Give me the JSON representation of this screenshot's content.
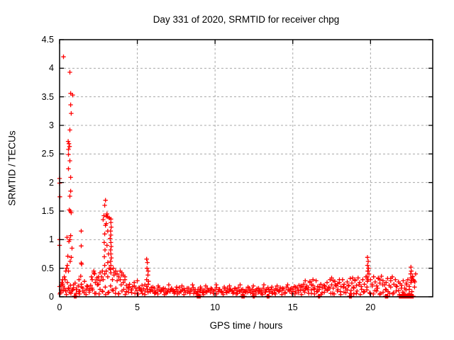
{
  "window": {
    "background": "#ffffff"
  },
  "chart_data": {
    "type": "scatter",
    "title": "Day 331 of 2020, SRMTID for receiver chpg",
    "xlabel": "GPS time / hours",
    "ylabel": "SRMTID / TECUs",
    "xlim": [
      0,
      24
    ],
    "ylim": [
      0,
      4.5
    ],
    "xticks": [
      0,
      5,
      10,
      15,
      20
    ],
    "xtick_labels": [
      "0",
      "5",
      "10",
      "15",
      "20"
    ],
    "yticks": [
      0,
      0.5,
      1,
      1.5,
      2,
      2.5,
      3,
      3.5,
      4,
      4.5
    ],
    "ytick_labels": [
      "0",
      "0.5",
      "1",
      "1.5",
      "2",
      "2.5",
      "3",
      "3.5",
      "4",
      "4.5"
    ],
    "grid": true,
    "legend": "none",
    "marker": "plus",
    "colors": {
      "marker": "#ff0000",
      "grid": "#a8a8a8",
      "axis": "#000000",
      "text": "#000000"
    },
    "series": [
      {
        "name": "SRMTID",
        "band1": {
          "x_start": 0.0,
          "x_step": 0.1,
          "y": [
            0.18,
            0.12,
            0.22,
            0.15,
            0.1,
            0.25,
            0.14,
            0.2,
            0.11,
            0.16,
            0.24,
            0.13,
            0.19,
            0.1,
            0.22,
            0.15,
            0.27,
            0.12,
            0.18,
            0.14,
            0.2,
            0.3,
            0.42,
            0.25,
            0.33,
            0.22,
            0.28,
            0.35,
            0.3,
            0.4,
            0.45,
            0.35,
            0.5,
            0.42,
            0.3,
            0.38,
            0.45,
            0.28,
            0.35,
            0.3,
            0.38,
            0.25,
            0.3,
            0.2,
            0.15,
            0.22,
            0.12,
            0.18,
            0.25,
            0.15,
            0.28,
            0.16,
            0.12,
            0.2,
            0.14,
            0.1,
            0.18,
            0.22,
            0.13,
            0.16,
            0.1,
            0.15,
            0.08,
            0.12,
            0.16,
            0.09,
            0.13,
            0.1,
            0.14,
            0.08,
            0.12,
            0.09,
            0.15,
            0.11,
            0.08,
            0.13,
            0.1,
            0.16,
            0.09,
            0.12,
            0.14,
            0.08,
            0.11,
            0.15,
            0.09,
            0.12,
            0.16,
            0.1,
            0.07,
            0.13,
            0.1,
            0.14,
            0.08,
            0.12,
            0.09,
            0.15,
            0.11,
            0.08,
            0.13,
            0.1,
            0.12,
            0.16,
            0.09,
            0.13,
            0.1,
            0.07,
            0.14,
            0.11,
            0.15,
            0.09,
            0.13,
            0.1,
            0.08,
            0.14,
            0.11,
            0.16,
            0.09,
            0.12,
            0.07,
            0.1,
            0.12,
            0.08,
            0.15,
            0.1,
            0.13,
            0.09,
            0.11,
            0.14,
            0.08,
            0.12,
            0.1,
            0.15,
            0.08,
            0.12,
            0.16,
            0.09,
            0.13,
            0.07,
            0.11,
            0.14,
            0.12,
            0.09,
            0.16,
            0.11,
            0.14,
            0.08,
            0.17,
            0.12,
            0.1,
            0.15,
            0.13,
            0.18,
            0.1,
            0.15,
            0.2,
            0.12,
            0.17,
            0.22,
            0.14,
            0.19,
            0.16,
            0.25,
            0.12,
            0.2,
            0.15,
            0.28,
            0.18,
            0.13,
            0.22,
            0.16,
            0.2,
            0.14,
            0.25,
            0.17,
            0.3,
            0.21,
            0.15,
            0.27,
            0.19,
            0.23,
            0.25,
            0.18,
            0.3,
            0.22,
            0.15,
            0.26,
            0.2,
            0.32,
            0.24,
            0.17,
            0.28,
            0.2,
            0.33,
            0.25,
            0.18,
            0.3,
            0.22,
            0.35,
            0.27,
            0.4,
            0.3,
            0.22,
            0.35,
            0.26,
            0.19,
            0.32,
            0.24,
            0.36,
            0.28,
            0.21,
            0.25,
            0.32,
            0.2,
            0.28,
            0.35,
            0.22,
            0.3,
            0.18,
            0.26,
            0.23,
            0.2,
            0.28,
            0.15,
            0.24,
            0.3,
            0.18,
            0.25,
            0.35,
            0.28,
            0.4
          ]
        },
        "band2": {
          "x_start": 0.05,
          "x_step": 0.17,
          "y": [
            0.07,
            0.19,
            0.11,
            0.15,
            0.06,
            0.21,
            0.13,
            0.09,
            0.17,
            0.07,
            0.19,
            0.11,
            0.15,
            0.06,
            0.21,
            0.13,
            0.09,
            0.17,
            0.07,
            0.19,
            0.11,
            0.15,
            0.06,
            0.21,
            0.13,
            0.09,
            0.17,
            0.07,
            0.19,
            0.11,
            0.15,
            0.06,
            0.21,
            0.13,
            0.09,
            0.17,
            0.07,
            0.19,
            0.11,
            0.15,
            0.06,
            0.21,
            0.13,
            0.09,
            0.17,
            0.07,
            0.19,
            0.11,
            0.15,
            0.06,
            0.21,
            0.13,
            0.09,
            0.17,
            0.07,
            0.19,
            0.11,
            0.15,
            0.06,
            0.21,
            0.13,
            0.09,
            0.17,
            0.07,
            0.19,
            0.11,
            0.15,
            0.06,
            0.21,
            0.13,
            0.09,
            0.17,
            0.07,
            0.19,
            0.11,
            0.15,
            0.06,
            0.21,
            0.13,
            0.09,
            0.17,
            0.07,
            0.19,
            0.11,
            0.15,
            0.06,
            0.21,
            0.13,
            0.09,
            0.17,
            0.07,
            0.19,
            0.11,
            0.15,
            0.06,
            0.21,
            0.13,
            0.09,
            0.17,
            0.07,
            0.19,
            0.11,
            0.15,
            0.06,
            0.21,
            0.13,
            0.09,
            0.17,
            0.07,
            0.19,
            0.11,
            0.15,
            0.06,
            0.21,
            0.13,
            0.09,
            0.17,
            0.07,
            0.19,
            0.11,
            0.15,
            0.06,
            0.21,
            0.13,
            0.09,
            0.17,
            0.07,
            0.19,
            0.11,
            0.15,
            0.06,
            0.21,
            0.13,
            0.09,
            0.17
          ]
        },
        "band3": {
          "x_start": 0.02,
          "x_step": 0.21,
          "y": [
            0.05,
            0.1,
            0.04,
            0.08,
            0.12,
            0.06,
            0.05,
            0.1,
            0.04,
            0.08,
            0.12,
            0.06,
            0.05,
            0.1,
            0.04,
            0.08,
            0.12,
            0.06,
            0.05,
            0.1,
            0.04,
            0.08,
            0.12,
            0.06,
            0.05,
            0.1,
            0.04,
            0.08,
            0.12,
            0.06,
            0.05,
            0.1,
            0.04,
            0.08,
            0.12,
            0.06,
            0.05,
            0.1,
            0.04,
            0.08,
            0.12,
            0.06,
            0.05,
            0.1,
            0.04,
            0.08,
            0.12,
            0.06,
            0.05,
            0.1,
            0.04,
            0.08,
            0.12,
            0.06,
            0.05,
            0.1,
            0.04,
            0.08,
            0.12,
            0.06,
            0.05,
            0.1,
            0.04,
            0.08,
            0.12,
            0.06,
            0.05,
            0.1,
            0.04,
            0.08,
            0.12,
            0.06,
            0.05,
            0.1,
            0.04,
            0.08,
            0.12,
            0.06,
            0.05,
            0.1,
            0.04,
            0.08,
            0.12,
            0.06,
            0.05,
            0.1,
            0.04,
            0.08,
            0.12,
            0.06,
            0.05,
            0.1,
            0.04,
            0.08,
            0.12,
            0.06,
            0.05,
            0.1,
            0.04,
            0.08,
            0.12,
            0.06,
            0.05,
            0.1,
            0.04,
            0.08,
            0.12,
            0.06
          ]
        },
        "features": [
          [
            0.25,
            4.2
          ],
          [
            0.66,
            3.93
          ],
          [
            0.71,
            3.56
          ],
          [
            0.84,
            3.53
          ],
          [
            0.71,
            3.36
          ],
          [
            0.75,
            3.21
          ],
          [
            0.66,
            2.92
          ],
          [
            0.55,
            2.72
          ],
          [
            0.6,
            2.68
          ],
          [
            0.64,
            2.63
          ],
          [
            0.57,
            2.58
          ],
          [
            0.57,
            2.49
          ],
          [
            0.66,
            2.38
          ],
          [
            0.57,
            2.24
          ],
          [
            0.71,
            2.09
          ],
          [
            0.71,
            1.85
          ],
          [
            0.66,
            1.76
          ],
          [
            0.62,
            1.52
          ],
          [
            0.7,
            1.5
          ],
          [
            0.75,
            1.47
          ],
          [
            0.48,
            1.04
          ],
          [
            0.71,
            1.07
          ],
          [
            0.66,
            1.0
          ],
          [
            0.6,
            0.97
          ],
          [
            0.53,
            0.71
          ],
          [
            0.75,
            0.69
          ],
          [
            0.57,
            0.45
          ],
          [
            0.5,
            0.55
          ],
          [
            0.68,
            0.62
          ],
          [
            0.8,
            0.85
          ],
          [
            0.0,
            2.07
          ],
          [
            0.0,
            1.99
          ],
          [
            0.02,
            1.75
          ],
          [
            0.0,
            1.0
          ],
          [
            0.0,
            0.9
          ],
          [
            0.3,
            0.35
          ],
          [
            0.35,
            0.3
          ],
          [
            0.4,
            0.45
          ],
          [
            0.45,
            0.5
          ],
          [
            0.2,
            0.3
          ],
          [
            0.15,
            0.25
          ],
          [
            0.1,
            0.2
          ],
          [
            1.39,
            1.15
          ],
          [
            1.39,
            0.89
          ],
          [
            1.39,
            0.59
          ],
          [
            1.42,
            0.57
          ],
          [
            1.36,
            0.36
          ],
          [
            1.25,
            0.3
          ],
          [
            2.95,
            1.69
          ],
          [
            2.9,
            1.6
          ],
          [
            2.85,
            1.42
          ],
          [
            3.0,
            1.41
          ],
          [
            3.1,
            1.4
          ],
          [
            3.2,
            1.38
          ],
          [
            2.8,
            1.35
          ],
          [
            3.3,
            1.36
          ],
          [
            2.95,
            1.25
          ],
          [
            3.05,
            1.45
          ],
          [
            3.0,
            1.28
          ],
          [
            3.3,
            1.3
          ],
          [
            3.32,
            1.22
          ],
          [
            3.28,
            1.15
          ],
          [
            3.3,
            1.08
          ],
          [
            3.25,
            1.02
          ],
          [
            3.3,
            0.95
          ],
          [
            3.32,
            0.88
          ],
          [
            3.28,
            0.82
          ],
          [
            3.3,
            0.75
          ],
          [
            3.33,
            0.68
          ],
          [
            3.28,
            0.62
          ],
          [
            3.3,
            0.55
          ],
          [
            3.27,
            0.48
          ],
          [
            2.9,
            1.1
          ],
          [
            2.87,
            0.95
          ],
          [
            2.92,
            0.82
          ],
          [
            2.88,
            0.7
          ],
          [
            2.9,
            0.55
          ],
          [
            3.1,
            1.15
          ],
          [
            3.05,
            0.9
          ],
          [
            3.15,
            0.75
          ],
          [
            3.1,
            0.6
          ],
          [
            2.75,
            0.45
          ],
          [
            3.45,
            0.5
          ],
          [
            3.5,
            0.42
          ],
          [
            2.2,
            0.45
          ],
          [
            2.25,
            0.4
          ],
          [
            2.5,
            0.35
          ],
          [
            2.6,
            0.42
          ],
          [
            3.6,
            0.45
          ],
          [
            3.7,
            0.4
          ],
          [
            3.9,
            0.45
          ],
          [
            4.0,
            0.42
          ],
          [
            4.1,
            0.38
          ],
          [
            2.05,
            0.35
          ],
          [
            2.4,
            0.3
          ],
          [
            4.2,
            0.35
          ],
          [
            5.6,
            0.66
          ],
          [
            5.65,
            0.6
          ],
          [
            5.62,
            0.5
          ],
          [
            5.7,
            0.45
          ],
          [
            5.68,
            0.38
          ],
          [
            5.6,
            0.3
          ],
          [
            5.72,
            0.27
          ],
          [
            15.8,
            0.28
          ],
          [
            16.1,
            0.27
          ],
          [
            16.3,
            0.3
          ],
          [
            17.5,
            0.33
          ],
          [
            17.6,
            0.28
          ],
          [
            18.0,
            0.3
          ],
          [
            18.85,
            0.33
          ],
          [
            19.0,
            0.3
          ],
          [
            20.5,
            0.33
          ],
          [
            20.6,
            0.3
          ],
          [
            21.3,
            0.32
          ],
          [
            19.8,
            0.69
          ],
          [
            19.85,
            0.62
          ],
          [
            19.8,
            0.55
          ],
          [
            19.87,
            0.5
          ],
          [
            19.82,
            0.45
          ],
          [
            19.9,
            0.4
          ],
          [
            19.78,
            0.35
          ],
          [
            19.85,
            0.3
          ],
          [
            22.6,
            0.52
          ],
          [
            22.62,
            0.45
          ],
          [
            22.58,
            0.4
          ],
          [
            22.6,
            0.33
          ],
          [
            22.65,
            0.28
          ],
          [
            22.7,
            0.36
          ],
          [
            22.75,
            0.3
          ],
          [
            22.85,
            0.26
          ]
        ],
        "zeros": {
          "y": 0.01,
          "x": [
            0.95,
            0.99,
            1.03,
            1.07,
            8.85,
            8.89,
            8.93,
            8.97,
            9.01,
            9.05,
            11.72,
            11.76,
            11.8,
            11.84,
            11.88,
            12.45,
            12.49,
            12.53,
            13.35,
            13.39,
            13.43,
            13.47,
            16.65,
            16.69,
            16.73,
            18.65,
            18.69,
            18.73,
            18.77,
            20.95,
            20.99,
            21.03,
            21.07,
            21.11,
            21.85,
            21.9,
            21.95,
            22.0,
            22.05,
            22.1,
            22.15,
            22.2,
            22.25,
            22.3,
            22.35,
            22.4,
            22.45,
            22.5,
            22.55,
            22.6,
            22.65,
            22.7,
            22.75
          ]
        }
      }
    ]
  }
}
